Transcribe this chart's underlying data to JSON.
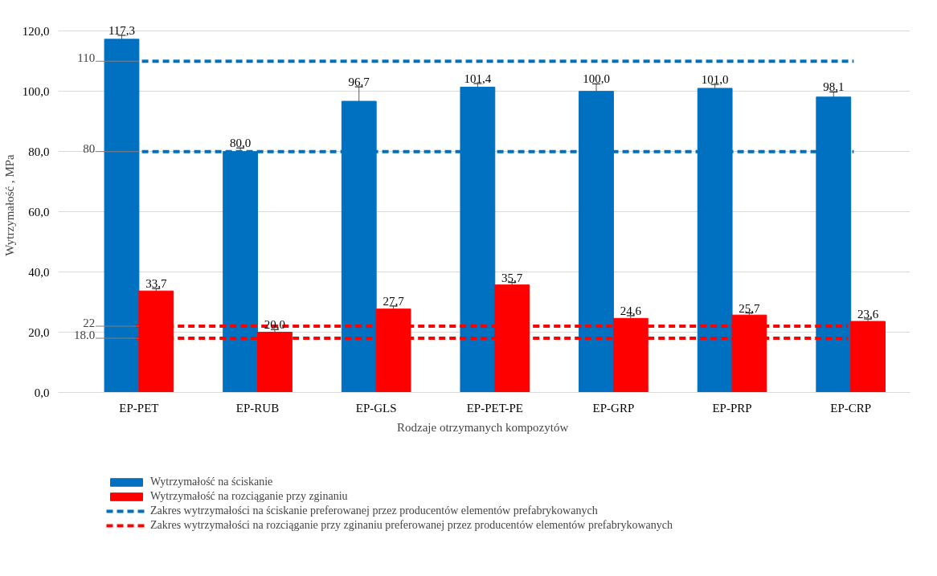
{
  "chart_data": {
    "type": "bar",
    "xlabel": "Rodzaje otrzymanych  kompozytów",
    "ylabel": "Wytrzymałość  , MPa",
    "categories": [
      "EP-PET",
      "EP-RUB",
      "EP-GLS",
      "EP-PET-PE",
      "EP-GRP",
      "EP-PRP",
      "EP-CRP"
    ],
    "series": [
      {
        "name": "Wytrzymałość na ściskanie",
        "color": "#0070c0",
        "values": [
          117.3,
          80.0,
          96.7,
          101.4,
          100.0,
          101.0,
          98.1
        ],
        "errors": [
          1.3,
          1.2,
          4.8,
          1.2,
          2.5,
          1.3,
          1.7
        ],
        "value_labels": [
          "117,3",
          "80,0",
          "96,7",
          "101,4",
          "100,0",
          "101,0",
          "98,1"
        ]
      },
      {
        "name": "Wytrzymałość na rozciąganie przy zginaniu",
        "color": "#ff0000",
        "values": [
          33.7,
          20.0,
          27.7,
          35.7,
          24.6,
          25.7,
          23.6
        ],
        "errors": [
          0.8,
          0.9,
          1.0,
          0.8,
          0.9,
          0.7,
          0.8
        ],
        "value_labels": [
          "33,7",
          "20,0",
          "27,7",
          "35,7",
          "24,6",
          "25,7",
          "23,6"
        ]
      },
      {
        "name": "Zakres wytrzymałości na ściskanie preferowanej przez producentów elementów prefabrykowanych",
        "type": "line",
        "line_style": "dashed",
        "color": "#0070c0",
        "values": [
          110,
          110,
          110,
          110,
          110,
          110,
          110
        ]
      },
      {
        "type": "line",
        "line_style": "dashed",
        "color": "#0070c0",
        "values": [
          80,
          80,
          80,
          80,
          80,
          80,
          80
        ]
      },
      {
        "name": "Zakres wytrzymałości na rozciąganie przy zginaniu preferowanej przez producentów elementów prefabrykowanych",
        "type": "line",
        "line_style": "dashed",
        "color": "#ff0000",
        "values": [
          22,
          22,
          22,
          22,
          22,
          22,
          22
        ]
      },
      {
        "type": "line",
        "line_style": "dashed",
        "color": "#ff0000",
        "values": [
          18,
          18,
          18,
          18,
          18,
          18,
          18
        ]
      }
    ],
    "annotations": [
      {
        "text": "110",
        "x": "EP-PET",
        "y": 110
      },
      {
        "text": "80",
        "x": "EP-PET",
        "y": 80
      },
      {
        "text": "22",
        "x": "EP-PET",
        "y": 22
      },
      {
        "text": "18.0",
        "x": "EP-PET",
        "y": 18
      }
    ],
    "ylim": [
      0,
      120
    ],
    "yticks": [
      {
        "value": 0,
        "label": "0,0"
      },
      {
        "value": 20,
        "label": "20,0"
      },
      {
        "value": 40,
        "label": "40,0"
      },
      {
        "value": 60,
        "label": "60,0"
      },
      {
        "value": 80,
        "label": "80,0"
      },
      {
        "value": 100,
        "label": "100,0"
      },
      {
        "value": 120,
        "label": "120,0"
      }
    ],
    "grid": "y",
    "legend": "bottom"
  }
}
